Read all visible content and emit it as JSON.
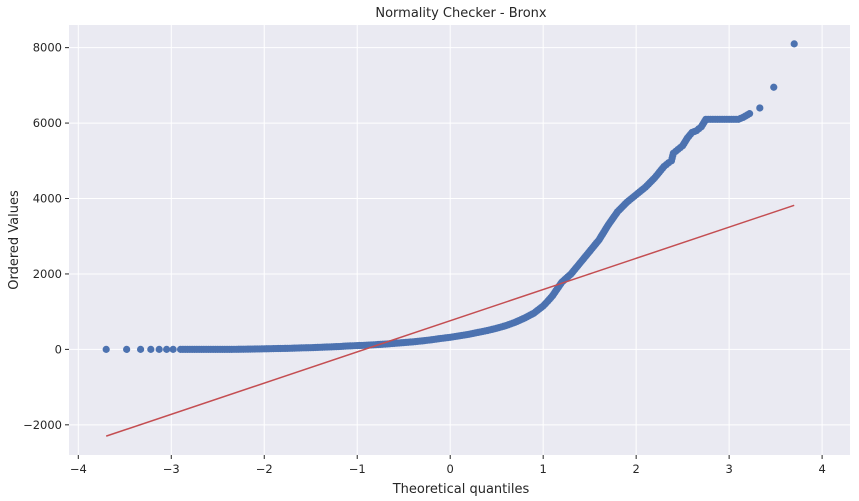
{
  "chart_data": {
    "type": "scatter",
    "title": "Normality Checker - Bronx",
    "xlabel": "Theoretical quantiles",
    "ylabel": "Ordered Values",
    "xlim": [
      -4.1,
      4.3
    ],
    "ylim": [
      -2800,
      8600
    ],
    "x_ticks": [
      -4,
      -3,
      -2,
      -1,
      0,
      1,
      2,
      3,
      4
    ],
    "x_tick_labels": [
      "−4",
      "−3",
      "−2",
      "−1",
      "0",
      "1",
      "2",
      "3",
      "4"
    ],
    "y_ticks": [
      -2000,
      0,
      2000,
      4000,
      6000,
      8000
    ],
    "y_tick_labels": [
      "−2000",
      "0",
      "2000",
      "4000",
      "6000",
      "8000"
    ],
    "grid": true,
    "background_color": "#eaeaf2",
    "series": [
      {
        "kind": "points",
        "color": "#4c72b0",
        "points": [
          [
            -3.7,
            0
          ],
          [
            -3.48,
            0
          ],
          [
            -3.33,
            0
          ],
          [
            -3.22,
            0
          ],
          [
            -3.13,
            0
          ],
          [
            -3.05,
            0
          ],
          [
            -2.98,
            0
          ],
          [
            -2.9,
            0
          ],
          [
            -2.8,
            0
          ],
          [
            -2.7,
            0
          ],
          [
            -2.6,
            0
          ],
          [
            -2.5,
            0
          ],
          [
            -2.4,
            0
          ],
          [
            -2.3,
            2
          ],
          [
            -2.2,
            5
          ],
          [
            -2.1,
            10
          ],
          [
            -2.0,
            15
          ],
          [
            -1.9,
            20
          ],
          [
            -1.8,
            25
          ],
          [
            -1.7,
            30
          ],
          [
            -1.6,
            40
          ],
          [
            -1.5,
            45
          ],
          [
            -1.4,
            55
          ],
          [
            -1.3,
            65
          ],
          [
            -1.2,
            75
          ],
          [
            -1.1,
            90
          ],
          [
            -1.0,
            100
          ],
          [
            -0.9,
            110
          ],
          [
            -0.8,
            125
          ],
          [
            -0.7,
            140
          ],
          [
            -0.6,
            160
          ],
          [
            -0.5,
            180
          ],
          [
            -0.4,
            200
          ],
          [
            -0.3,
            225
          ],
          [
            -0.2,
            255
          ],
          [
            -0.1,
            290
          ],
          [
            0.0,
            320
          ],
          [
            0.1,
            360
          ],
          [
            0.2,
            400
          ],
          [
            0.3,
            450
          ],
          [
            0.4,
            500
          ],
          [
            0.5,
            560
          ],
          [
            0.6,
            630
          ],
          [
            0.7,
            720
          ],
          [
            0.8,
            830
          ],
          [
            0.9,
            960
          ],
          [
            1.0,
            1150
          ],
          [
            1.05,
            1280
          ],
          [
            1.1,
            1420
          ],
          [
            1.15,
            1600
          ],
          [
            1.2,
            1780
          ],
          [
            1.3,
            2000
          ],
          [
            1.4,
            2300
          ],
          [
            1.5,
            2600
          ],
          [
            1.6,
            2900
          ],
          [
            1.7,
            3300
          ],
          [
            1.8,
            3650
          ],
          [
            1.9,
            3900
          ],
          [
            2.0,
            4100
          ],
          [
            2.1,
            4300
          ],
          [
            2.2,
            4550
          ],
          [
            2.25,
            4700
          ],
          [
            2.3,
            4850
          ],
          [
            2.35,
            4950
          ],
          [
            2.38,
            5000
          ],
          [
            2.4,
            5200
          ],
          [
            2.45,
            5300
          ],
          [
            2.5,
            5400
          ],
          [
            2.55,
            5600
          ],
          [
            2.6,
            5750
          ],
          [
            2.65,
            5800
          ],
          [
            2.7,
            5900
          ],
          [
            2.75,
            6100
          ],
          [
            2.8,
            6100
          ],
          [
            2.85,
            6100
          ],
          [
            2.9,
            6100
          ],
          [
            2.95,
            6100
          ],
          [
            3.0,
            6100
          ],
          [
            3.05,
            6100
          ],
          [
            3.1,
            6100
          ],
          [
            3.15,
            6150
          ],
          [
            3.22,
            6250
          ],
          [
            3.33,
            6400
          ],
          [
            3.48,
            6950
          ],
          [
            3.7,
            8100
          ]
        ]
      },
      {
        "kind": "fit-line",
        "color": "#c44e52",
        "x": [
          -3.7,
          3.7
        ],
        "y": [
          -2300,
          3820
        ]
      }
    ]
  }
}
